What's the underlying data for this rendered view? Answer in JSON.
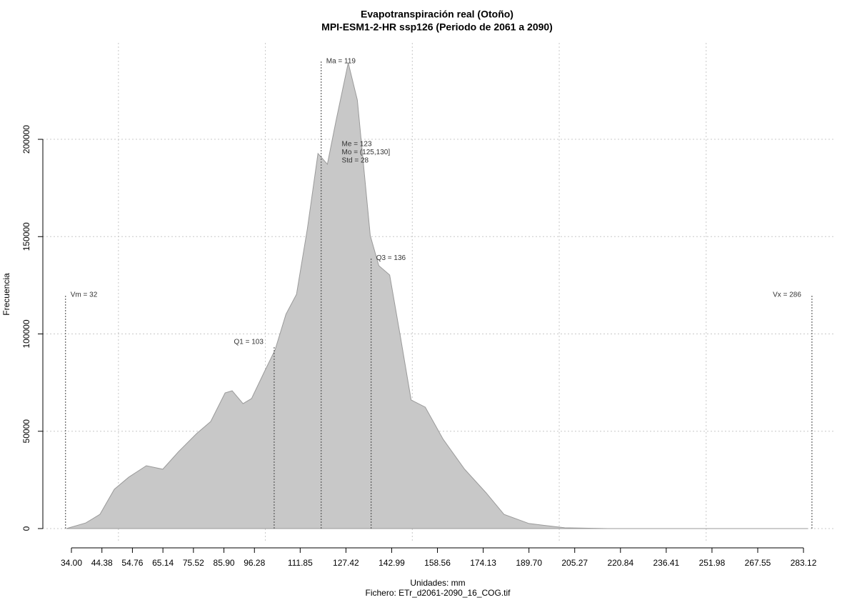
{
  "chart_data": {
    "type": "area",
    "title": "Evapotranspiración real (Otoño)",
    "subtitle": "MPI-ESM1-2-HR ssp126 (Periodo de 2061 a 2090)",
    "x_label": "Unidades: mm",
    "footer": "Fichero: ETr_d2061-2090_16_COG.tif",
    "y_label": "Frecuencia",
    "color": "#c8c8c8",
    "line_color": "#9a9a9a",
    "x": [
      32.3,
      38.9,
      43.7,
      48.6,
      53.5,
      59.5,
      65.1,
      70.5,
      76.6,
      81.4,
      86.3,
      88.7,
      92.4,
      95.3,
      99.7,
      103.3,
      107.0,
      110.6,
      114.3,
      117.9,
      121.1,
      124.0,
      128.2,
      131.3,
      135.7,
      138.6,
      142.3,
      145.9,
      149.6,
      154.4,
      160.5,
      167.8,
      175.1,
      181.2,
      189.7,
      201.9,
      216.5,
      284.6
    ],
    "values": [
      0,
      2900,
      7300,
      20200,
      26400,
      32300,
      30500,
      39600,
      48800,
      55000,
      69700,
      70800,
      64200,
      66800,
      80700,
      91800,
      110100,
      120400,
      154100,
      192700,
      187200,
      209200,
      239300,
      220200,
      150500,
      135100,
      130300,
      99100,
      66100,
      62400,
      45900,
      30500,
      18400,
      7300,
      2600,
      400,
      0,
      0
    ],
    "xlim": [
      24.28,
      294.04
    ],
    "ylim": [
      -7340,
      249560
    ],
    "xticks": [
      {
        "value": 34.0,
        "label": "34.00"
      },
      {
        "value": 44.38,
        "label": "44.38"
      },
      {
        "value": 54.76,
        "label": "54.76"
      },
      {
        "value": 65.14,
        "label": "65.14"
      },
      {
        "value": 75.52,
        "label": "75.52"
      },
      {
        "value": 85.9,
        "label": "85.90"
      },
      {
        "value": 96.28,
        "label": "96.28"
      },
      {
        "value": 111.85,
        "label": "111.85"
      },
      {
        "value": 127.42,
        "label": "127.42"
      },
      {
        "value": 142.99,
        "label": "142.99"
      },
      {
        "value": 158.56,
        "label": "158.56"
      },
      {
        "value": 174.13,
        "label": "174.13"
      },
      {
        "value": 189.7,
        "label": "189.70"
      },
      {
        "value": 205.27,
        "label": "205.27"
      },
      {
        "value": 220.84,
        "label": "220.84"
      },
      {
        "value": 236.41,
        "label": "236.41"
      },
      {
        "value": 251.98,
        "label": "251.98"
      },
      {
        "value": 267.55,
        "label": "267.55"
      },
      {
        "value": 283.12,
        "label": "283.12"
      }
    ],
    "yticks": [
      0,
      50000,
      100000,
      150000,
      200000
    ],
    "grid_x": [
      50,
      100,
      150,
      200,
      250
    ],
    "grid": true,
    "markers": [
      {
        "label": "Vm = 32",
        "x": 32,
        "top": 120000
      },
      {
        "label": "Q1 = 103",
        "x": 103,
        "top": 93600
      },
      {
        "label": "Ma = 119",
        "x": 119,
        "top": 240000
      },
      {
        "label": "Q3 = 136",
        "x": 136,
        "top": 139000
      },
      {
        "label": "Vx = 286",
        "x": 286,
        "top": 120000
      }
    ],
    "stats": {
      "x": 126,
      "y": 197500,
      "lines": [
        "Me = 123",
        "Mo = (125,130]",
        "Std = 28"
      ]
    }
  }
}
